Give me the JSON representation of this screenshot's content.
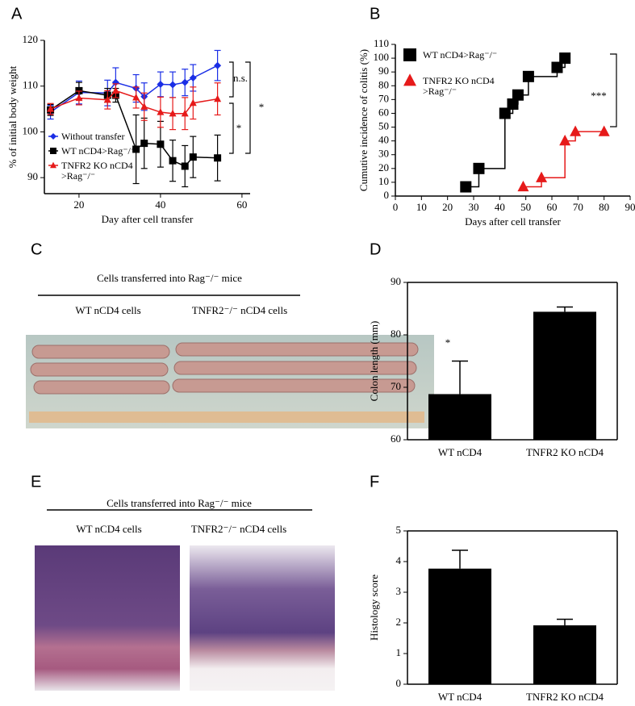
{
  "panel_labels": [
    "A",
    "B",
    "C",
    "D",
    "E",
    "F"
  ],
  "photo_panels": [
    {
      "heading": "Cells transferred into Rag⁻/⁻ mice",
      "left": "WT nCD4 cells",
      "right": "TNFR2⁻/⁻ nCD4 cells"
    },
    {
      "heading": "Cells transferred into Rag⁻/⁻ mice",
      "left": "WT nCD4 cells",
      "right": "TNFR2⁻/⁻ nCD4 cells"
    }
  ],
  "chart_data": [
    {
      "type": "line",
      "x_label": "Day after cell transfer",
      "y_label": "% of initial body weight",
      "x": [
        13,
        20,
        27,
        29,
        34,
        36,
        40,
        43,
        46,
        48,
        54
      ],
      "xlim": [
        11.5,
        62
      ],
      "xticks": [
        20,
        40,
        60
      ],
      "ylim": [
        86.5,
        120
      ],
      "yticks": [
        90,
        100,
        110,
        120
      ],
      "series": [
        {
          "name": "Without transfer",
          "color": "#1a2ee6",
          "marker": "diamond",
          "values": [
            104.3,
            108.6,
            108.5,
            110.8,
            109.5,
            107.7,
            110.4,
            110.3,
            110.8,
            111.8,
            114.5
          ],
          "errors": [
            1.5,
            2.5,
            2.8,
            3.2,
            3,
            3,
            2.7,
            2.8,
            2.9,
            2.9,
            3.3
          ]
        },
        {
          "name": "WT nCD4>Rag⁻/⁻",
          "color": "#000000",
          "marker": "square",
          "values": [
            104.8,
            109,
            108,
            108,
            96.2,
            97.5,
            97.3,
            93.7,
            92.5,
            94.5,
            94.3
          ],
          "errors": [
            1.2,
            1.8,
            1.5,
            1.5,
            7.5,
            5.5,
            5,
            4.5,
            4.5,
            4.5,
            5
          ]
        },
        {
          "name": "TNFR2 KO nCD4 >Rag⁻/⁻",
          "color": "#e61a1a",
          "marker": "triangle",
          "values": [
            105,
            107.4,
            107,
            109,
            107.5,
            105.5,
            104.3,
            104,
            104,
            106.3,
            107.2
          ],
          "errors": [
            1.2,
            1.5,
            2,
            1.5,
            2.3,
            3,
            3.3,
            3.5,
            3.5,
            3.5,
            3.5
          ]
        }
      ],
      "annotations": [
        "n.s.",
        "*",
        "*"
      ]
    },
    {
      "type": "step",
      "x_label": "Days after cell transfer",
      "y_label": "Cumutive incidence of colitis (%)",
      "xlim": [
        0,
        90
      ],
      "xticks": [
        0,
        10,
        20,
        30,
        40,
        50,
        60,
        70,
        80,
        90
      ],
      "ylim": [
        0,
        110
      ],
      "yticks": [
        0,
        10,
        20,
        30,
        40,
        50,
        60,
        70,
        80,
        90,
        100,
        110
      ],
      "series": [
        {
          "name": "WT nCD4>Rag⁻/⁻",
          "color": "#000000",
          "marker": "square",
          "x": [
            27,
            32,
            42,
            45,
            47,
            51,
            62,
            65
          ],
          "values": [
            6.7,
            20,
            60,
            66.7,
            73.3,
            86.7,
            93.3,
            100
          ]
        },
        {
          "name": "TNFR2 KO nCD4 >Rag⁻/⁻",
          "color": "#e61a1a",
          "marker": "triangle",
          "x": [
            49,
            56,
            65,
            69,
            80
          ],
          "values": [
            6.7,
            13.3,
            40,
            46.7,
            46.7
          ]
        }
      ],
      "annotations": [
        "***"
      ]
    },
    {
      "type": "bar",
      "y_label": "Colon length (mm)",
      "categories": [
        "WT nCD4",
        "TNFR2 KO nCD4"
      ],
      "values": [
        68.7,
        84.4
      ],
      "errors": [
        6.3,
        0.9
      ],
      "color": "#000000",
      "ylim": [
        60,
        90
      ],
      "yticks": [
        60,
        70,
        80,
        90
      ],
      "annotations": [
        "*"
      ]
    },
    {
      "type": "bar",
      "y_label": "Histology score",
      "categories": [
        "WT nCD4",
        "TNFR2 KO nCD4"
      ],
      "values": [
        3.77,
        1.92
      ],
      "errors": [
        0.6,
        0.2
      ],
      "color": "#000000",
      "ylim": [
        0,
        5
      ],
      "yticks": [
        0,
        1,
        2,
        3,
        4,
        5
      ],
      "annotations": [
        "*"
      ]
    }
  ]
}
